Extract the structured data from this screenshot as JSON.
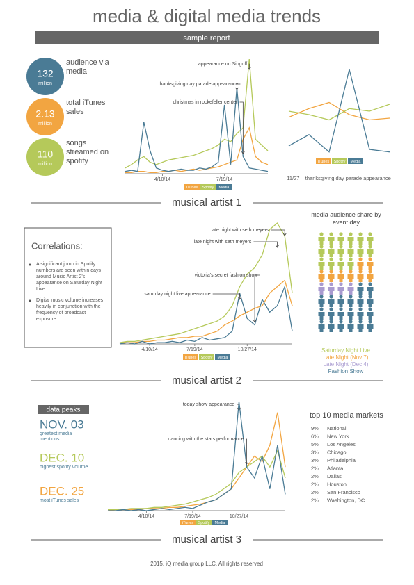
{
  "header": {
    "title": "media & digital media trends",
    "subtitle": "sample report"
  },
  "stats": [
    {
      "number": "132",
      "unit": "million",
      "label": "audience via media"
    },
    {
      "number": "2.13",
      "unit": "million",
      "label": "total iTunes sales"
    },
    {
      "number": "110",
      "unit": "million",
      "label": "songs streamed on spotify"
    }
  ],
  "chart_data": [
    {
      "type": "line",
      "ylim": [
        0,
        100
      ],
      "categories": [
        null,
        null,
        null,
        null,
        null,
        null,
        "4/10/14",
        null,
        null,
        null,
        null,
        null,
        null,
        null,
        null,
        null,
        "7/19/14",
        null,
        null,
        null,
        null,
        null,
        null,
        null
      ],
      "series": [
        {
          "name": "iTunes",
          "color": "#f2a541",
          "values": [
            1,
            1,
            2,
            2,
            1,
            1,
            2,
            2,
            3,
            2,
            3,
            4,
            3,
            4,
            5,
            6,
            8,
            10,
            12,
            30,
            40,
            15,
            10,
            8
          ]
        },
        {
          "name": "Spotify",
          "color": "#b5c95a",
          "values": [
            5,
            8,
            12,
            15,
            10,
            8,
            10,
            12,
            13,
            14,
            15,
            16,
            18,
            20,
            22,
            25,
            30,
            28,
            35,
            40,
            100,
            30,
            25,
            20
          ]
        },
        {
          "name": "Media",
          "color": "#4a7b95",
          "values": [
            2,
            3,
            2,
            45,
            20,
            5,
            3,
            2,
            3,
            4,
            3,
            3,
            5,
            4,
            6,
            10,
            60,
            8,
            75,
            15,
            5,
            4,
            3,
            2
          ]
        }
      ],
      "annotations": [
        "appearance on Singoff",
        "thanksgiving day parade appearance",
        "christmas in rockefeller center"
      ]
    },
    {
      "type": "line",
      "ylim": [
        0,
        100
      ],
      "categories": [
        null,
        null,
        null,
        null,
        null,
        null
      ],
      "series": [
        {
          "name": "iTunes",
          "color": "#f2a541",
          "values": [
            45,
            55,
            62,
            48,
            42,
            44
          ]
        },
        {
          "name": "Spotify",
          "color": "#b5c95a",
          "values": [
            52,
            48,
            42,
            55,
            52,
            60
          ]
        },
        {
          "name": "Media",
          "color": "#4a7b95",
          "values": [
            12,
            25,
            5,
            100,
            8,
            5
          ]
        }
      ],
      "caption": "11/27 – thanksgiving day parade appearance"
    },
    {
      "type": "line",
      "ylim": [
        0,
        100
      ],
      "categories": [
        null,
        null,
        null,
        null,
        "4/10/14",
        null,
        null,
        null,
        null,
        null,
        "7/19/14",
        null,
        null,
        null,
        null,
        null,
        null,
        "10/27/14",
        null,
        null,
        null,
        null,
        null,
        null
      ],
      "series": [
        {
          "name": "iTunes",
          "color": "#f2a541",
          "values": [
            1,
            1,
            1,
            2,
            2,
            3,
            3,
            4,
            5,
            5,
            6,
            6,
            8,
            10,
            15,
            18,
            22,
            25,
            28,
            30,
            40,
            45,
            50,
            30
          ]
        },
        {
          "name": "Spotify",
          "color": "#b5c95a",
          "values": [
            1,
            2,
            2,
            3,
            4,
            5,
            6,
            7,
            8,
            10,
            12,
            14,
            16,
            18,
            22,
            30,
            45,
            55,
            60,
            70,
            90,
            95,
            85,
            40
          ]
        },
        {
          "name": "Media",
          "color": "#4a7b95",
          "values": [
            0,
            1,
            0,
            2,
            0,
            1,
            1,
            2,
            1,
            3,
            2,
            5,
            3,
            4,
            5,
            10,
            40,
            20,
            15,
            35,
            25,
            30,
            45,
            10
          ]
        }
      ],
      "annotations": [
        "late night with seth meyers",
        "late night with seth meyers",
        "victoria's secret fashion show",
        "saturday night live appearance"
      ]
    },
    {
      "type": "line",
      "ylim": [
        0,
        100
      ],
      "categories": [
        null,
        null,
        null,
        null,
        null,
        "4/10/14",
        null,
        null,
        null,
        null,
        null,
        "7/19/14",
        null,
        null,
        null,
        null,
        null,
        "10/27/14",
        null,
        null,
        null,
        null,
        null,
        null
      ],
      "series": [
        {
          "name": "iTunes",
          "color": "#f2a541",
          "values": [
            0,
            1,
            1,
            1,
            1,
            2,
            2,
            2,
            3,
            3,
            4,
            5,
            6,
            8,
            10,
            15,
            20,
            30,
            40,
            50,
            45,
            60,
            90,
            40
          ]
        },
        {
          "name": "Spotify",
          "color": "#b5c95a",
          "values": [
            1,
            1,
            1,
            2,
            2,
            2,
            3,
            3,
            4,
            5,
            6,
            8,
            10,
            12,
            15,
            20,
            25,
            35,
            40,
            45,
            50,
            40,
            55,
            30
          ]
        },
        {
          "name": "Media",
          "color": "#4a7b95",
          "values": [
            0,
            0,
            1,
            0,
            1,
            0,
            1,
            2,
            1,
            2,
            3,
            2,
            5,
            8,
            10,
            15,
            20,
            100,
            40,
            30,
            50,
            20,
            60,
            15
          ]
        }
      ],
      "annotations": [
        "today show appearance",
        "dancing with the stars performance"
      ]
    }
  ],
  "sections": [
    "musical artist 1",
    "musical artist 2",
    "musical artist 3"
  ],
  "correlations": {
    "title": "Correlations:",
    "bullets": [
      "A significant jump in Spotify numbers are seen within days around Music Artist 2's appearance on Saturday Night Live.",
      "Digital music volume increases heavily in conjunction with the frequency of broadcast exposure."
    ]
  },
  "audience_share": {
    "title": "media audience share by event day",
    "items": [
      {
        "name": "Saturday Night Live",
        "color": "#b5c95a",
        "count": 16
      },
      {
        "name": "Late Night (Nov 7)",
        "color": "#f2a541",
        "count": 8
      },
      {
        "name": "Late Night (Dec 4)",
        "color": "#a99bd0",
        "count": 4
      },
      {
        "name": "Fashion Show",
        "color": "#4a7b95",
        "count": 20
      }
    ]
  },
  "data_peaks": {
    "title": "data peaks",
    "items": [
      {
        "date": "NOV. 03",
        "label": "greatest media mentions",
        "color": "#4a7b95"
      },
      {
        "date": "DEC. 10",
        "label": "highest spotify volume",
        "color": "#b5c95a"
      },
      {
        "date": "DEC. 25",
        "label": "most iTunes sales",
        "color": "#f2a541"
      }
    ]
  },
  "markets": {
    "title": "top 10 media markets",
    "rows": [
      [
        "9%",
        "National"
      ],
      [
        "6%",
        "New York"
      ],
      [
        "5%",
        "Los Angeles"
      ],
      [
        "3%",
        "Chicago"
      ],
      [
        "3%",
        "Philadelphia"
      ],
      [
        "2%",
        "Atlanta"
      ],
      [
        "2%",
        "Dallas"
      ],
      [
        "2%",
        "Houston"
      ],
      [
        "2%",
        "San Francisco"
      ],
      [
        "2%",
        "Washington, DC"
      ]
    ]
  },
  "footer": "2015. iQ media group LLC. All rights reserved"
}
